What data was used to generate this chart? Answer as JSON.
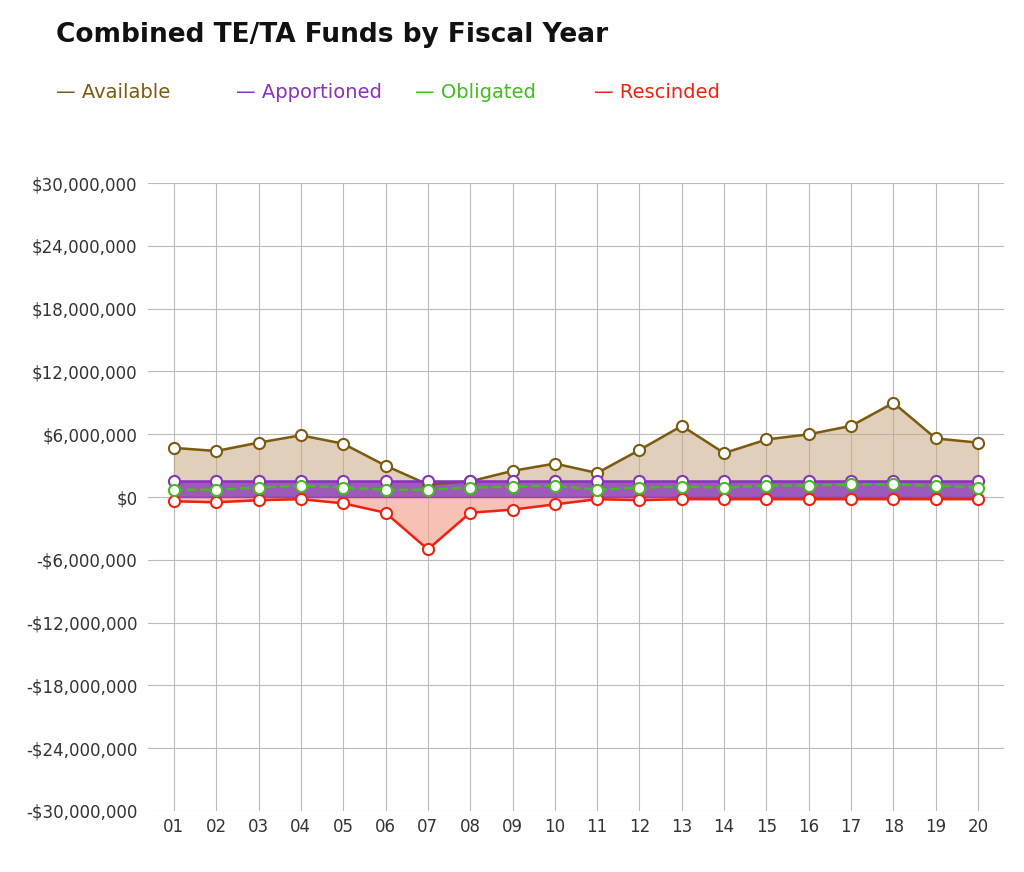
{
  "title": "Combined TE/TA Funds by Fiscal Year",
  "years": [
    1,
    2,
    3,
    4,
    5,
    6,
    7,
    8,
    9,
    10,
    11,
    12,
    13,
    14,
    15,
    16,
    17,
    18,
    19,
    20
  ],
  "year_labels": [
    "01",
    "02",
    "03",
    "04",
    "05",
    "06",
    "07",
    "08",
    "09",
    "10",
    "11",
    "12",
    "13",
    "14",
    "15",
    "16",
    "17",
    "18",
    "19",
    "20"
  ],
  "available": [
    4700000,
    4400000,
    5200000,
    5900000,
    5100000,
    3000000,
    1200000,
    1500000,
    2500000,
    3200000,
    2300000,
    4500000,
    6800000,
    4200000,
    5500000,
    6000000,
    6800000,
    9000000,
    5600000,
    5200000
  ],
  "apportioned": [
    1500000,
    1500000,
    1500000,
    1500000,
    1500000,
    1500000,
    1500000,
    1500000,
    1500000,
    1500000,
    1500000,
    1500000,
    1500000,
    1500000,
    1500000,
    1500000,
    1500000,
    1500000,
    1500000,
    1500000
  ],
  "obligated": [
    700000,
    700000,
    900000,
    1100000,
    900000,
    700000,
    700000,
    900000,
    1000000,
    1100000,
    700000,
    900000,
    1000000,
    900000,
    1100000,
    1100000,
    1200000,
    1200000,
    1100000,
    900000
  ],
  "rescinded": [
    -400000,
    -500000,
    -300000,
    -200000,
    -600000,
    -1500000,
    -5000000,
    -1500000,
    -1200000,
    -700000,
    -200000,
    -300000,
    -200000,
    -200000,
    -200000,
    -200000,
    -200000,
    -200000,
    -200000,
    -200000
  ],
  "available_color": "#7B5B10",
  "apportioned_color": "#8833BB",
  "obligated_color": "#44BB22",
  "rescinded_color": "#EE2211",
  "available_fill": "#C8A882",
  "apportioned_fill": "#8833BB",
  "rescinded_fill": "#F5A090",
  "ylim": [
    -30000000,
    30000000
  ],
  "ytick_step": 6000000,
  "bg_color": "#FFFFFF",
  "plot_bg": "#FFFFFF",
  "grid_color": "#BBBBBB",
  "legend_items": [
    {
      "label": "Available",
      "color": "#7B5B10"
    },
    {
      "label": "Apportioned",
      "color": "#8833BB"
    },
    {
      "label": "Obligated",
      "color": "#44BB22"
    },
    {
      "label": "Rescinded",
      "color": "#EE2211"
    }
  ]
}
